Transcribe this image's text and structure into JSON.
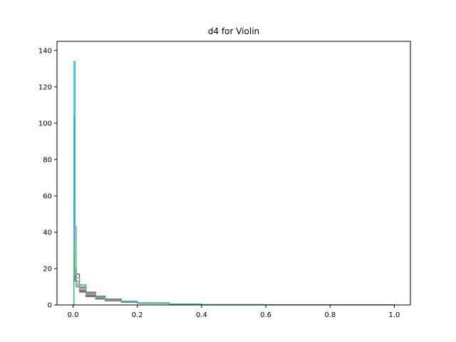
{
  "chart_data": {
    "type": "line",
    "title": "d4 for Violin",
    "xlabel": "",
    "ylabel": "",
    "xlim": [
      -0.05,
      1.05
    ],
    "ylim": [
      0,
      145
    ],
    "xticks": [
      0.0,
      0.2,
      0.4,
      0.6,
      0.8,
      1.0
    ],
    "xtick_labels": [
      "0.0",
      "0.2",
      "0.4",
      "0.6",
      "0.8",
      "1.0"
    ],
    "yticks": [
      0,
      20,
      40,
      60,
      80,
      100,
      120,
      140
    ],
    "ytick_labels": [
      "0",
      "20",
      "40",
      "60",
      "80",
      "100",
      "120",
      "140"
    ],
    "grid": false,
    "legend": "none",
    "series_colors": [
      "#1f77b4",
      "#ff7f0e",
      "#2ca02c",
      "#d62728",
      "#9467bd",
      "#8c564b",
      "#e377c2",
      "#7f7f7f",
      "#bcbd22",
      "#17becf"
    ],
    "series": [
      {
        "peak": 22,
        "values": [
          [
            0.0,
            0
          ],
          [
            0.003,
            22
          ],
          [
            0.006,
            14
          ],
          [
            0.01,
            11
          ],
          [
            0.02,
            8
          ],
          [
            0.04,
            5
          ],
          [
            0.07,
            3.5
          ],
          [
            0.1,
            2.5
          ],
          [
            0.15,
            1.6
          ],
          [
            0.2,
            1.0
          ],
          [
            0.3,
            0.4
          ],
          [
            0.4,
            0.15
          ],
          [
            0.6,
            0.05
          ],
          [
            1.0,
            0
          ]
        ]
      },
      {
        "peak": 30,
        "values": [
          [
            0.0,
            0
          ],
          [
            0.003,
            30
          ],
          [
            0.006,
            16
          ],
          [
            0.01,
            12
          ],
          [
            0.02,
            9
          ],
          [
            0.04,
            6
          ],
          [
            0.07,
            4
          ],
          [
            0.1,
            2.8
          ],
          [
            0.15,
            1.7
          ],
          [
            0.2,
            1.1
          ],
          [
            0.3,
            0.4
          ],
          [
            0.4,
            0.15
          ],
          [
            0.6,
            0.05
          ],
          [
            1.0,
            0
          ]
        ]
      },
      {
        "peak": 104,
        "values": [
          [
            0.0,
            0
          ],
          [
            0.003,
            104
          ],
          [
            0.006,
            20
          ],
          [
            0.01,
            13
          ],
          [
            0.02,
            9.5
          ],
          [
            0.04,
            6.5
          ],
          [
            0.07,
            4.5
          ],
          [
            0.1,
            3.2
          ],
          [
            0.15,
            2.0
          ],
          [
            0.2,
            1.2
          ],
          [
            0.3,
            0.5
          ],
          [
            0.4,
            0.2
          ],
          [
            0.6,
            0.05
          ],
          [
            1.0,
            0
          ]
        ]
      },
      {
        "peak": 27,
        "values": [
          [
            0.0,
            0
          ],
          [
            0.003,
            27
          ],
          [
            0.006,
            19
          ],
          [
            0.01,
            17
          ],
          [
            0.02,
            11
          ],
          [
            0.04,
            7
          ],
          [
            0.07,
            4.8
          ],
          [
            0.1,
            3.3
          ],
          [
            0.15,
            2.0
          ],
          [
            0.2,
            1.2
          ],
          [
            0.3,
            0.5
          ],
          [
            0.4,
            0.2
          ],
          [
            0.6,
            0.05
          ],
          [
            1.0,
            0
          ]
        ]
      },
      {
        "peak": 24,
        "values": [
          [
            0.0,
            0
          ],
          [
            0.003,
            24
          ],
          [
            0.006,
            15
          ],
          [
            0.01,
            11
          ],
          [
            0.02,
            8
          ],
          [
            0.04,
            5.5
          ],
          [
            0.07,
            3.8
          ],
          [
            0.1,
            2.6
          ],
          [
            0.15,
            1.6
          ],
          [
            0.2,
            1.0
          ],
          [
            0.3,
            0.4
          ],
          [
            0.4,
            0.15
          ],
          [
            0.6,
            0.05
          ],
          [
            1.0,
            0
          ]
        ]
      },
      {
        "peak": 20,
        "values": [
          [
            0.0,
            0
          ],
          [
            0.003,
            20
          ],
          [
            0.006,
            13
          ],
          [
            0.01,
            10
          ],
          [
            0.02,
            7.5
          ],
          [
            0.04,
            5
          ],
          [
            0.07,
            3.5
          ],
          [
            0.1,
            2.5
          ],
          [
            0.15,
            1.5
          ],
          [
            0.2,
            0.9
          ],
          [
            0.3,
            0.35
          ],
          [
            0.4,
            0.12
          ],
          [
            0.6,
            0.04
          ],
          [
            1.0,
            0
          ]
        ]
      },
      {
        "peak": 56,
        "values": [
          [
            0.0,
            0
          ],
          [
            0.003,
            56
          ],
          [
            0.006,
            18
          ],
          [
            0.01,
            12
          ],
          [
            0.02,
            8.5
          ],
          [
            0.04,
            5.8
          ],
          [
            0.07,
            4.0
          ],
          [
            0.1,
            2.8
          ],
          [
            0.15,
            1.7
          ],
          [
            0.2,
            1.0
          ],
          [
            0.3,
            0.4
          ],
          [
            0.4,
            0.15
          ],
          [
            0.6,
            0.05
          ],
          [
            1.0,
            0
          ]
        ]
      },
      {
        "peak": 26,
        "values": [
          [
            0.0,
            0
          ],
          [
            0.003,
            26
          ],
          [
            0.006,
            14
          ],
          [
            0.01,
            10
          ],
          [
            0.02,
            7
          ],
          [
            0.04,
            4.5
          ],
          [
            0.07,
            3.2
          ],
          [
            0.1,
            2.2
          ],
          [
            0.15,
            1.4
          ],
          [
            0.2,
            0.8
          ],
          [
            0.3,
            0.3
          ],
          [
            0.4,
            0.1
          ],
          [
            0.6,
            0.03
          ],
          [
            1.0,
            0
          ]
        ]
      },
      {
        "peak": 35,
        "values": [
          [
            0.0,
            0
          ],
          [
            0.003,
            35
          ],
          [
            0.006,
            17
          ],
          [
            0.01,
            12
          ],
          [
            0.02,
            9
          ],
          [
            0.04,
            6
          ],
          [
            0.07,
            4.2
          ],
          [
            0.1,
            3.0
          ],
          [
            0.15,
            1.9
          ],
          [
            0.2,
            1.1
          ],
          [
            0.3,
            0.45
          ],
          [
            0.4,
            0.18
          ],
          [
            0.6,
            0.05
          ],
          [
            1.0,
            0
          ]
        ]
      },
      {
        "peak": 134,
        "values": [
          [
            0.0,
            0
          ],
          [
            0.003,
            134
          ],
          [
            0.006,
            43
          ],
          [
            0.01,
            15
          ],
          [
            0.02,
            10
          ],
          [
            0.04,
            6.5
          ],
          [
            0.07,
            4.5
          ],
          [
            0.1,
            3.1
          ],
          [
            0.15,
            1.9
          ],
          [
            0.2,
            1.1
          ],
          [
            0.3,
            0.45
          ],
          [
            0.4,
            0.17
          ],
          [
            0.6,
            0.05
          ],
          [
            1.0,
            0
          ]
        ]
      }
    ]
  }
}
